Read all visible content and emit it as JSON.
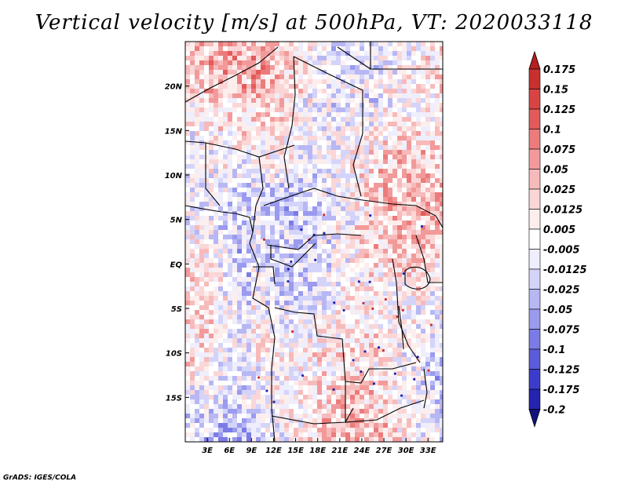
{
  "chart_data": {
    "type": "heatmap",
    "title": "Vertical velocity [m/s] at 500hPa, VT: 2020033118",
    "variable": "Vertical velocity",
    "units": "m/s",
    "level": "500hPa",
    "valid_time": "2020033118",
    "x_ticks": [
      "3E",
      "6E",
      "9E",
      "12E",
      "15E",
      "18E",
      "21E",
      "24E",
      "27E",
      "30E",
      "33E"
    ],
    "y_ticks": [
      "20N",
      "15N",
      "10N",
      "5N",
      "EQ",
      "5S",
      "10S",
      "15S"
    ],
    "xlim": [
      0,
      35
    ],
    "ylim": [
      -20,
      25
    ],
    "colorbar": {
      "levels": [
        "0.175",
        "0.15",
        "0.125",
        "0.1",
        "0.075",
        "0.05",
        "0.025",
        "0.0125",
        "0.005",
        "-0.005",
        "-0.0125",
        "-0.025",
        "-0.05",
        "-0.075",
        "-0.1",
        "-0.125",
        "-0.175",
        "-0.2"
      ],
      "colors": [
        "#b51f20",
        "#c83030",
        "#d84444",
        "#e35a5a",
        "#ec7b7b",
        "#f29a9a",
        "#f7baba",
        "#fbd6d6",
        "#fdeeee",
        "#ffffff",
        "#eeeefd",
        "#d4d4fa",
        "#b7b7f4",
        "#9a9aee",
        "#7b7be6",
        "#5c5cda",
        "#3c3ccc",
        "#2424b0",
        "#12127e"
      ]
    }
  },
  "credit": "GrADS: IGES/COLA"
}
